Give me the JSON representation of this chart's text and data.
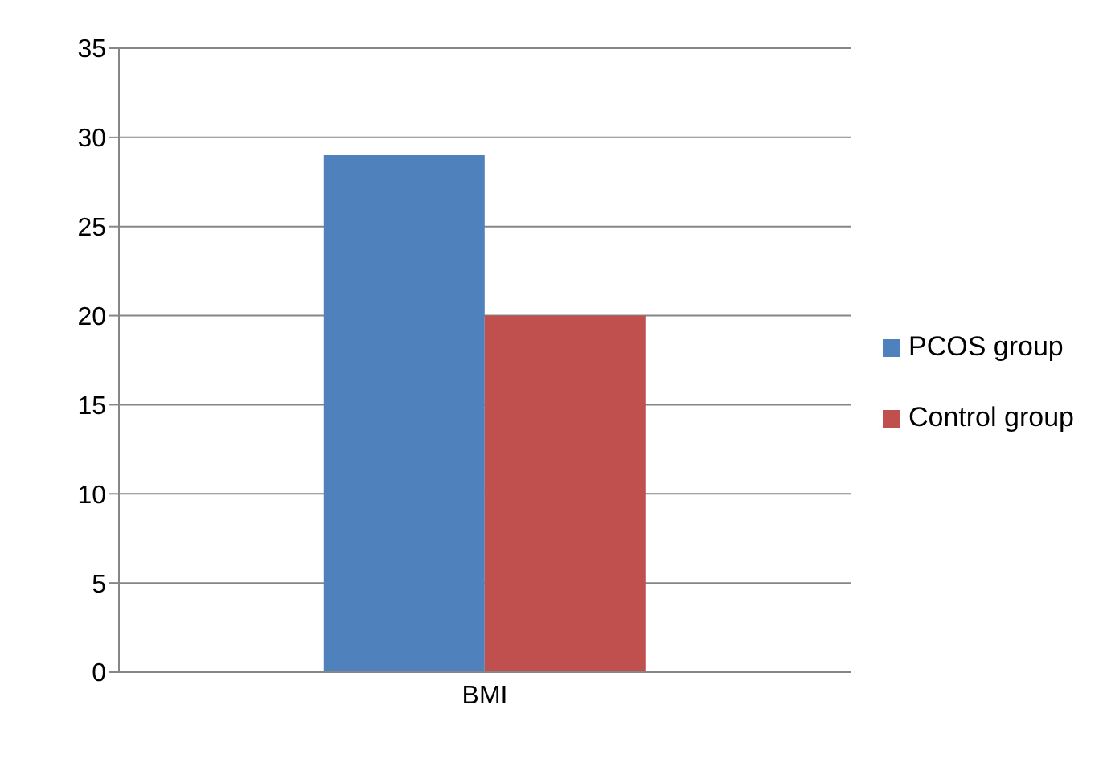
{
  "chart_data": {
    "type": "bar",
    "categories": [
      "BMI"
    ],
    "series": [
      {
        "name": "PCOS group",
        "color": "#4f81bd",
        "values": [
          29
        ]
      },
      {
        "name": "Control group",
        "color": "#c0504d",
        "values": [
          20
        ]
      }
    ],
    "ylim": [
      0,
      35
    ],
    "yticks": [
      0,
      5,
      10,
      15,
      20,
      25,
      30,
      35
    ],
    "grid": "y",
    "legend": "right"
  }
}
